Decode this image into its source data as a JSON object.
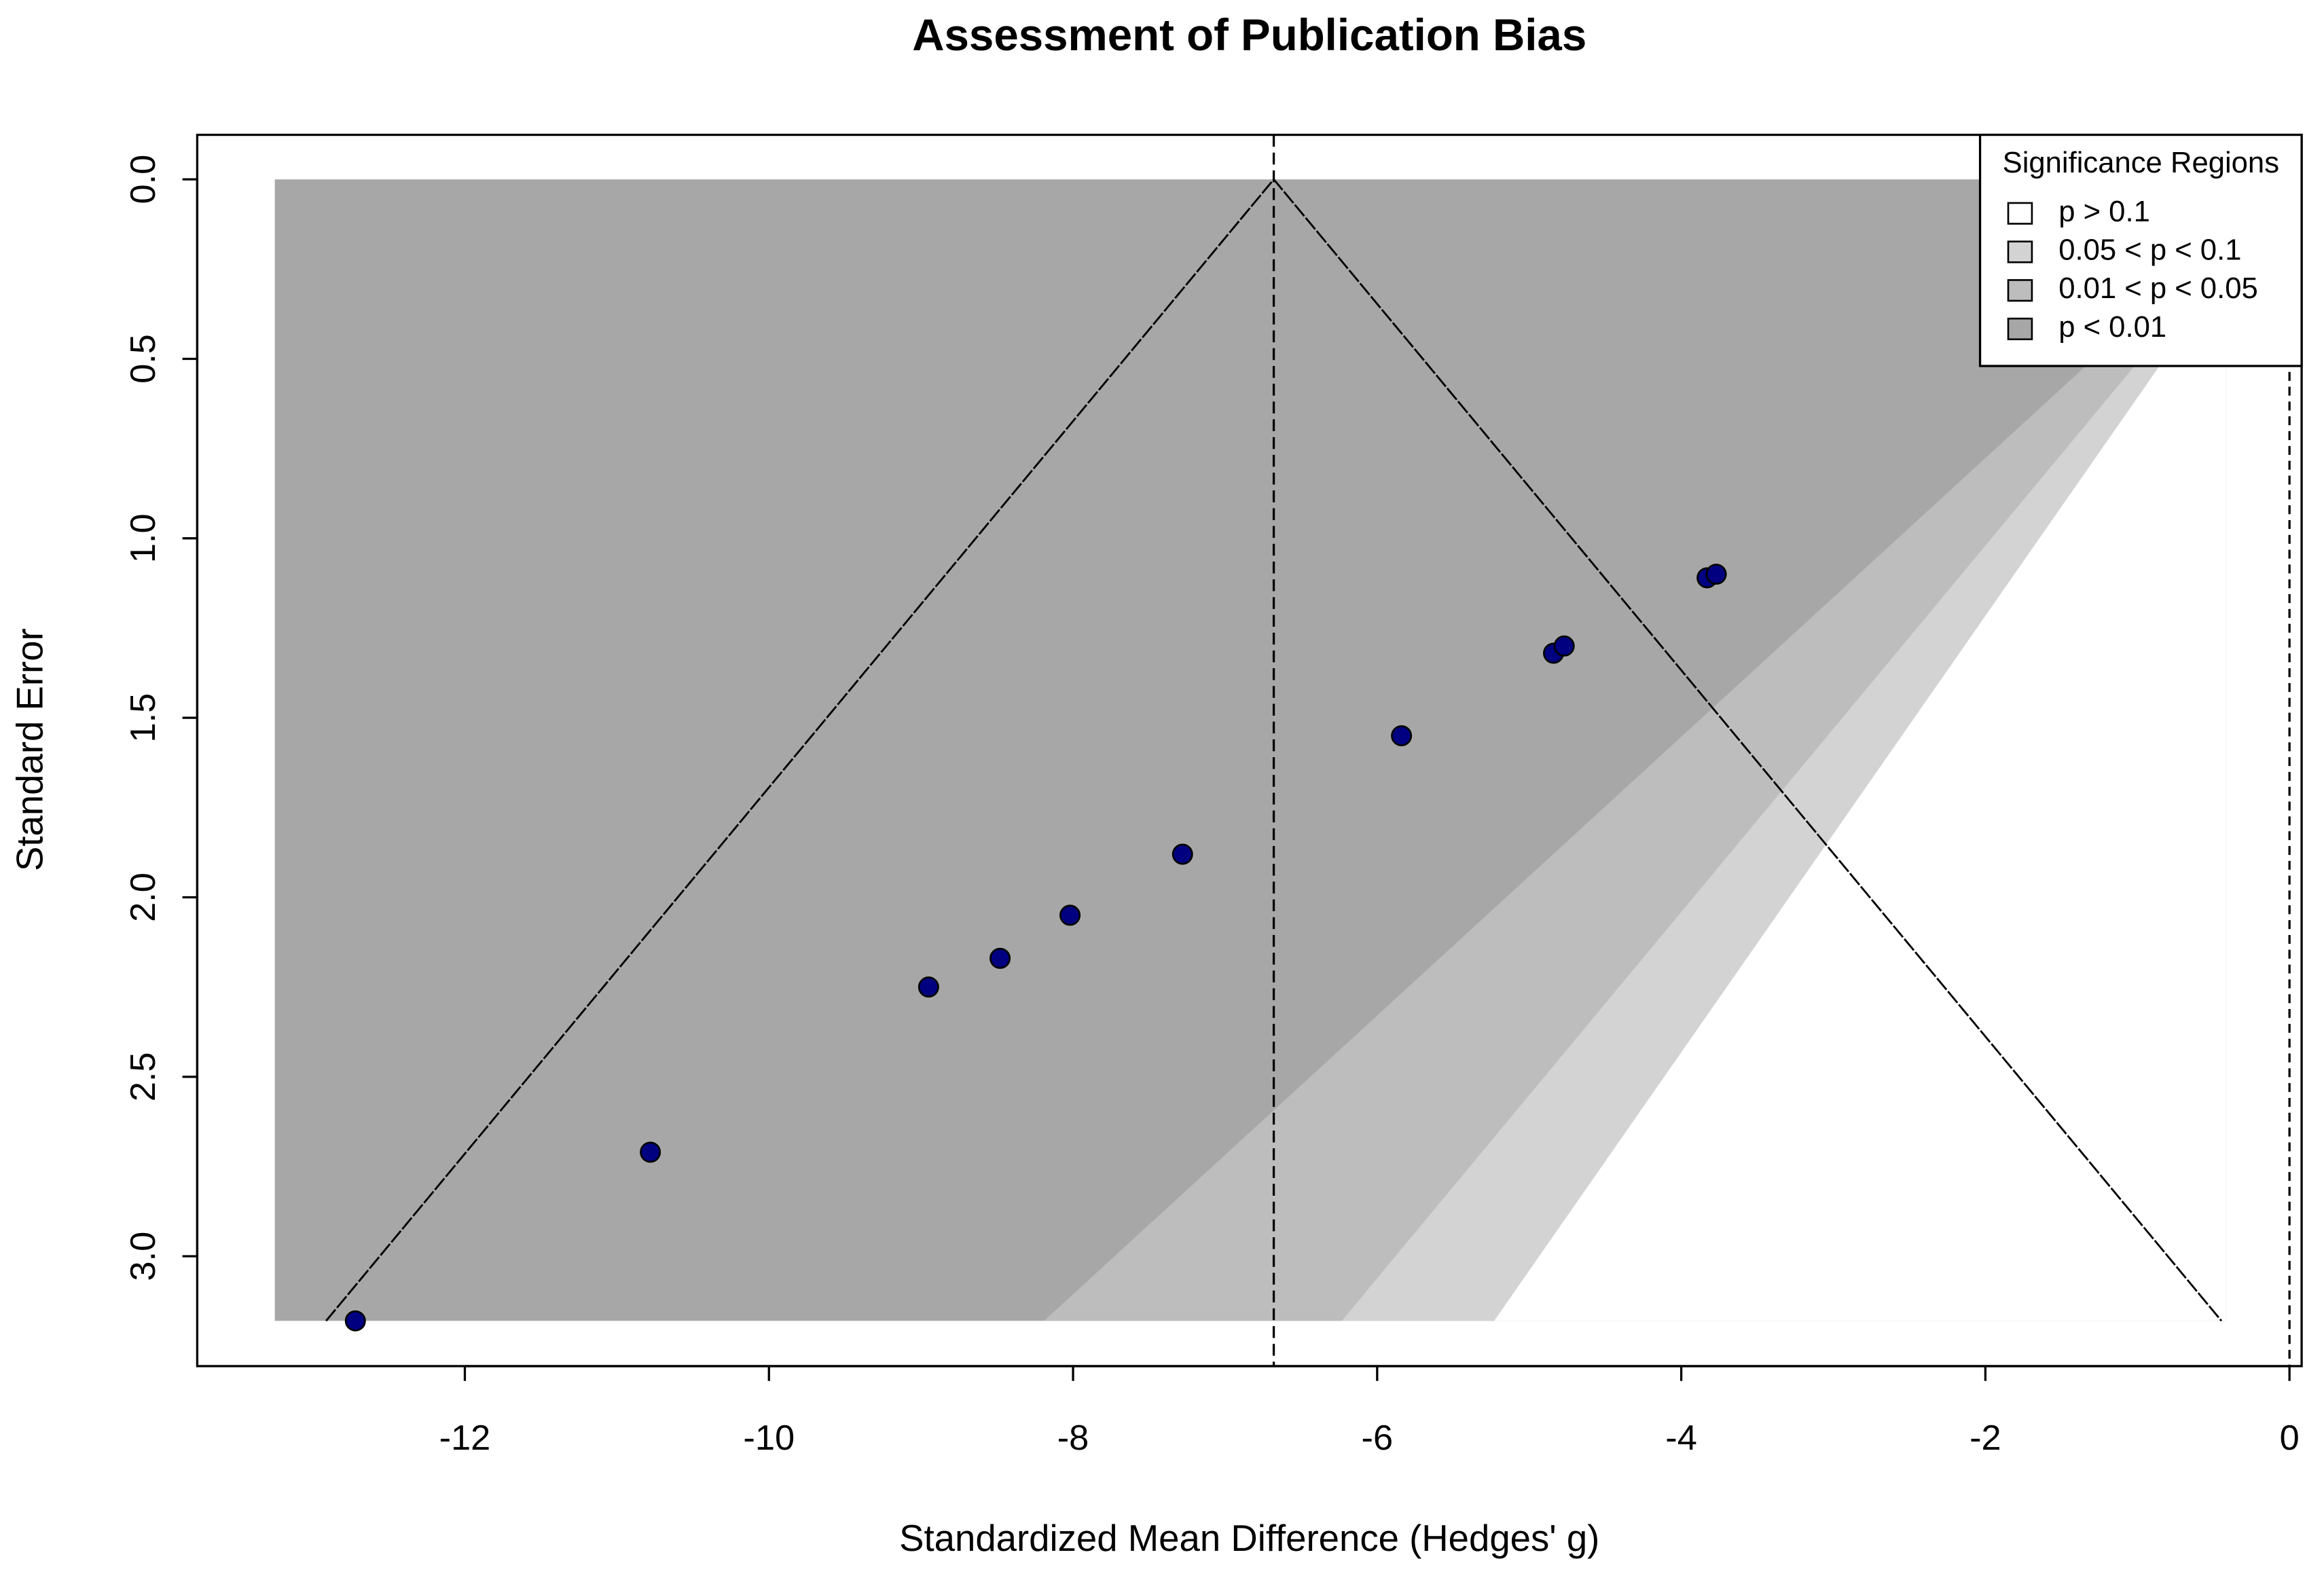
{
  "chart_data": {
    "type": "funnel",
    "title": "Assessment of Publication Bias",
    "x_label": "Standardized Mean Difference (Hedges' g)",
    "y_label": "Standard Error",
    "x": [
      -12.72,
      -10.78,
      -8.95,
      -8.48,
      -8.02,
      -7.28,
      -5.84,
      -4.84,
      -4.77,
      -3.83,
      -3.77
    ],
    "values": [
      3.18,
      2.71,
      2.25,
      2.17,
      2.05,
      1.88,
      1.55,
      1.32,
      1.3,
      1.11,
      1.1
    ],
    "color": "#000080",
    "xlim": [
      -13.76,
      0.08
    ],
    "ylim": [
      -0.124,
      3.306
    ],
    "y_reversed": true,
    "xticks": [
      -12,
      -10,
      -8,
      -6,
      -4,
      -2,
      0
    ],
    "yticks": [
      {
        "value": 0,
        "label": "0.0"
      },
      0.5,
      {
        "value": 1,
        "label": "1.0"
      },
      1.5,
      {
        "value": 2,
        "label": "2.0"
      },
      2.5,
      {
        "value": 3,
        "label": "3.0"
      }
    ],
    "legend_title": "Significance Regions",
    "legend": "top-right",
    "contour_levels": [
      0.1,
      0.05,
      0.01
    ],
    "region_xlim": [
      -13.25,
      -0.42
    ],
    "region_ylim": [
      0,
      3.18
    ],
    "series": [
      {
        "name": "p > 0.1",
        "color": "#ffffff"
      },
      {
        "name": "0.05 < p < 0.1",
        "color": "#d3d3d3"
      },
      {
        "name": "0.01 < p < 0.05",
        "color": "#bdbdbd"
      },
      {
        "name": "p < 0.01",
        "color": "#a7a7a7"
      }
    ],
    "funnel_center": -6.68,
    "funnel_level": 0.05,
    "reference_line": 0
  }
}
